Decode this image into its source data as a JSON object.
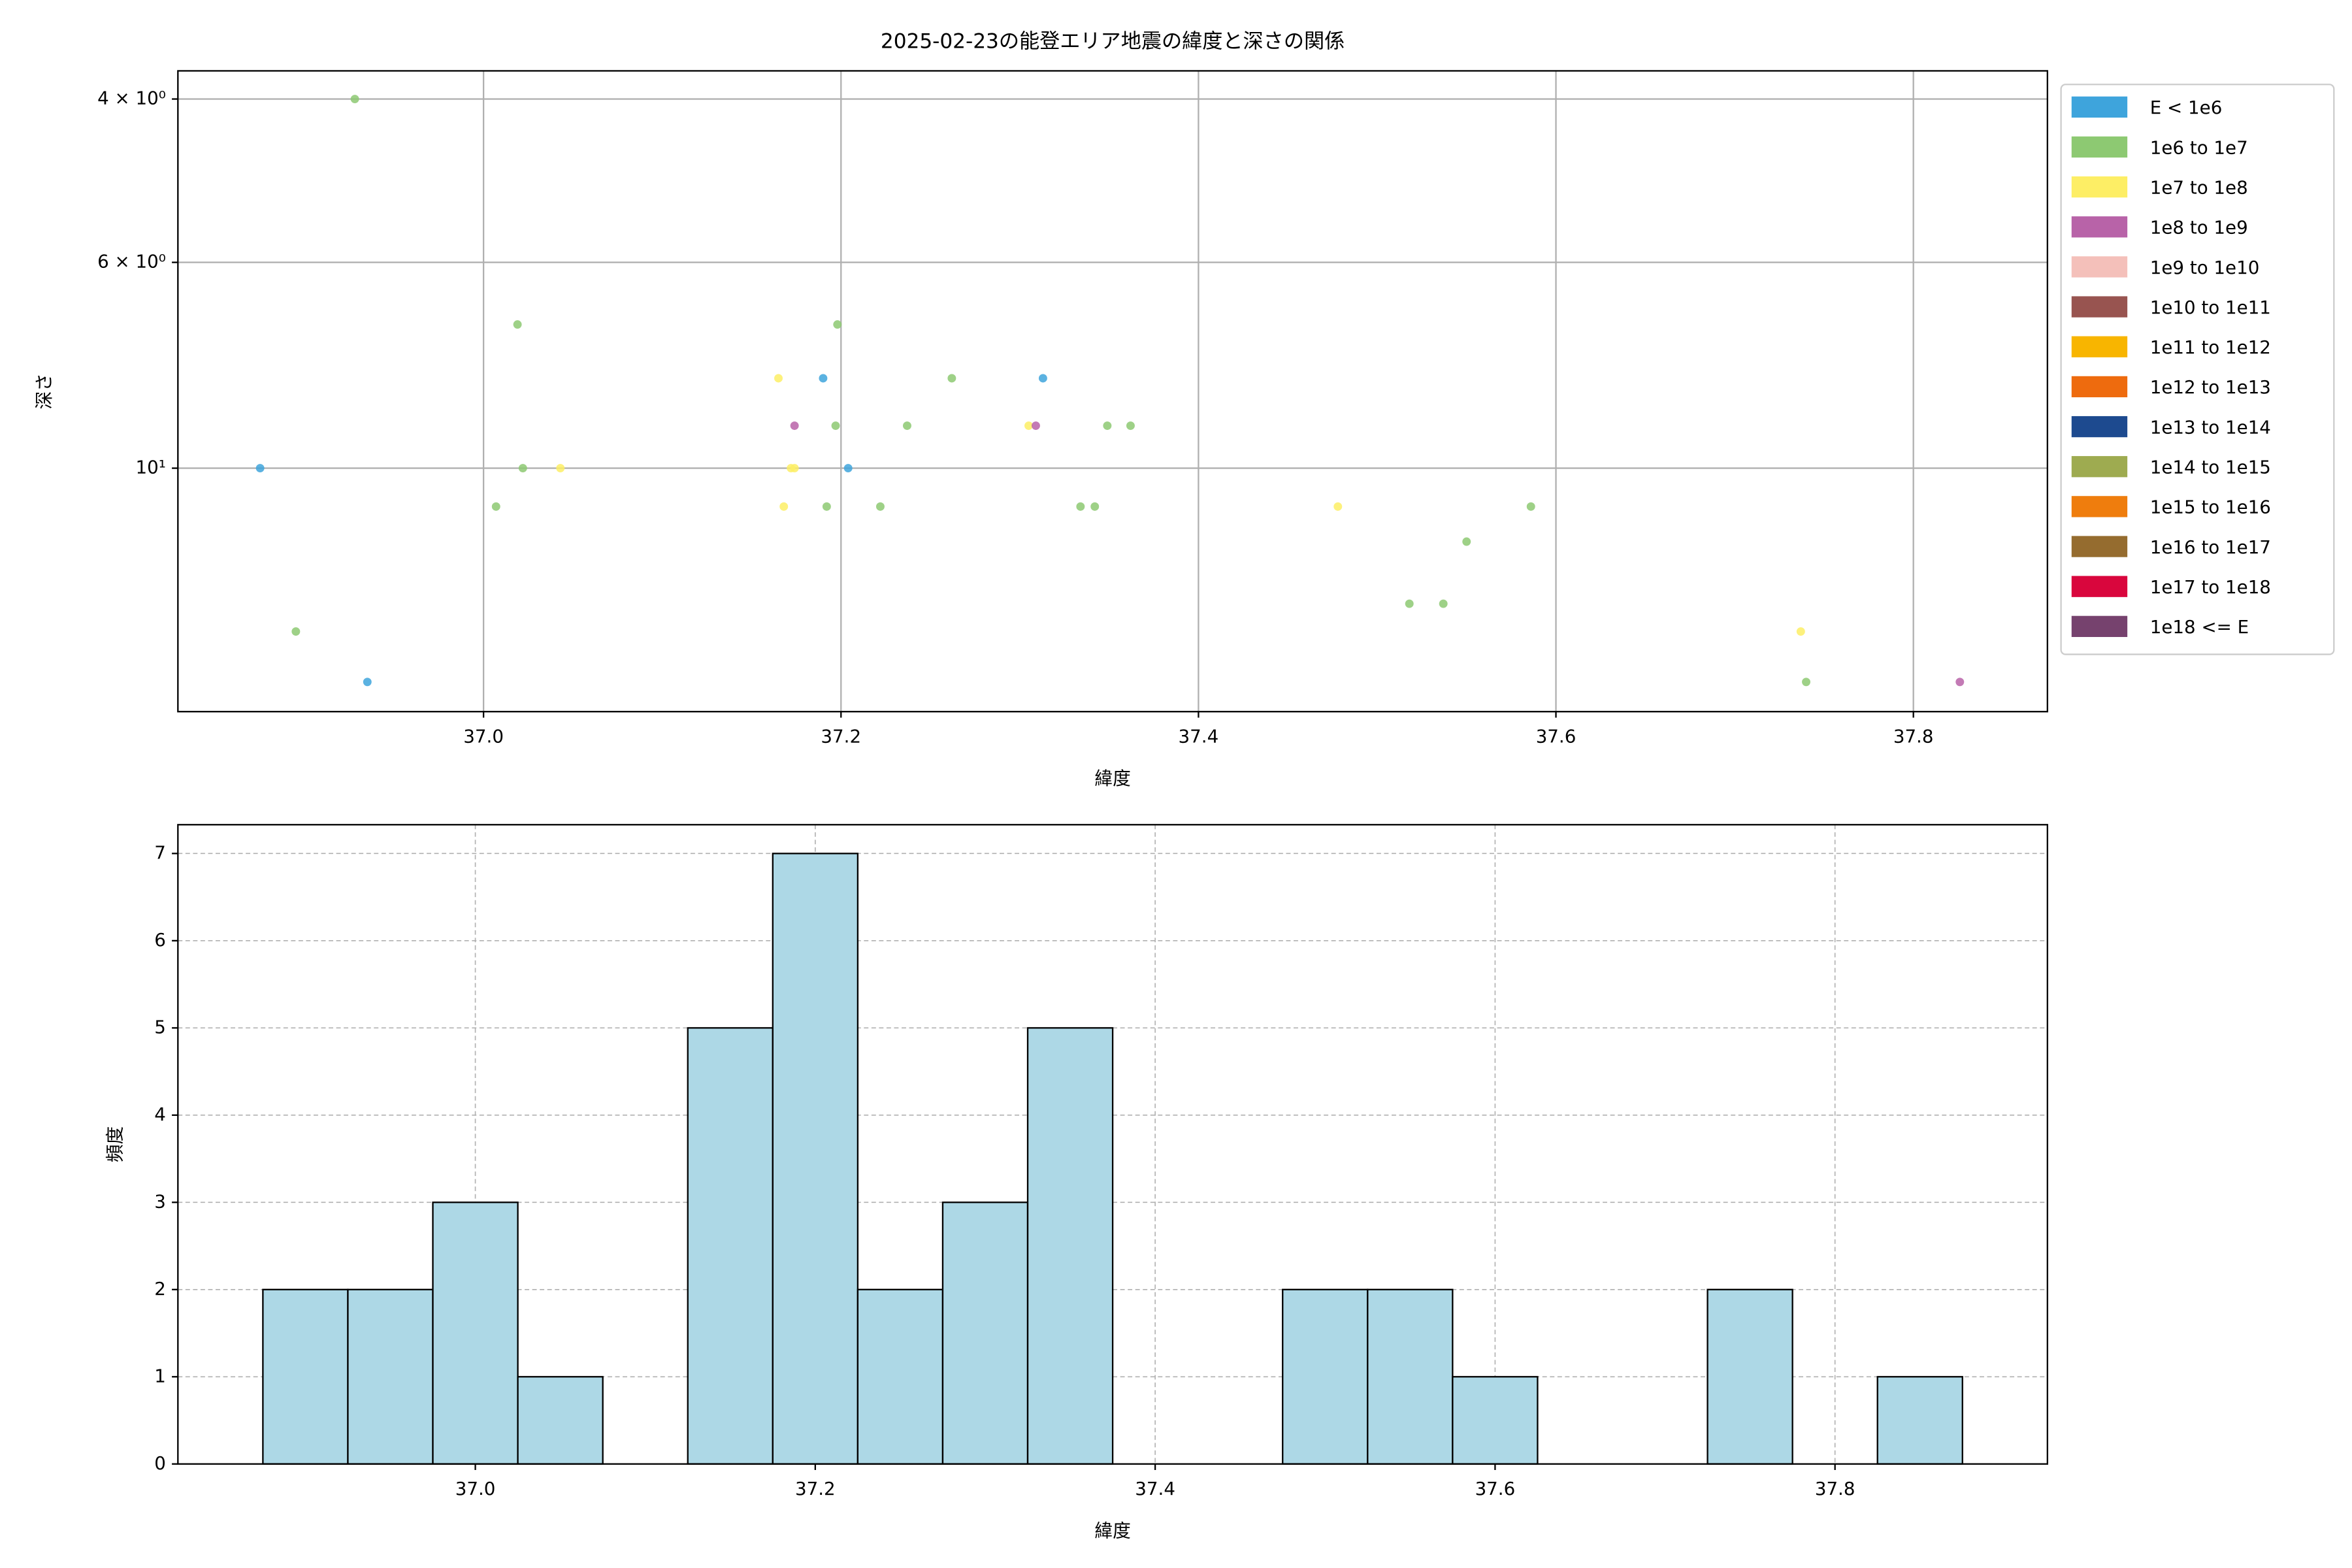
{
  "chart_data": [
    {
      "type": "scatter",
      "title": "2025-02-23の能登エリア地震の緯度と深さの関係",
      "x_label": "緯度",
      "y_label": "深さ",
      "yscale": "log",
      "grid": true,
      "grid_style": "solid",
      "legend": "outside right",
      "xlim": [
        36.829,
        37.875
      ],
      "xticks": [
        {
          "value": 37,
          "label": "37.0"
        },
        37.2,
        37.4,
        37.6,
        37.8
      ],
      "ylim": [
        18.3,
        3.73
      ],
      "yticks": [
        {
          "value": 4,
          "label": "4 × 10⁰"
        },
        {
          "value": 6,
          "label": "6 × 10⁰"
        },
        {
          "value": 10,
          "label": "10¹"
        }
      ],
      "series": [
        {
          "name": "E < 1e6",
          "color": "#3ea4dc",
          "x": [
            36.875,
            36.935,
            37.19,
            37.204,
            37.313
          ],
          "values": [
            10,
            17,
            8,
            10,
            8
          ]
        },
        {
          "name": "1e6 to 1e7",
          "color": "#8dc972",
          "x": [
            36.928,
            36.895,
            37.019,
            37.007,
            37.022,
            37.198,
            37.197,
            37.192,
            37.222,
            37.237,
            37.262,
            37.349,
            37.362,
            37.334,
            37.342,
            37.586,
            37.55,
            37.518,
            37.537,
            37.74
          ],
          "values": [
            4,
            15,
            7,
            11,
            10,
            7,
            9,
            11,
            11,
            9,
            8,
            9,
            9,
            11,
            11,
            11,
            12,
            14,
            14,
            17
          ]
        },
        {
          "name": "1e7 to 1e8",
          "color": "#fdee65",
          "x": [
            37.043,
            37.165,
            37.172,
            37.174,
            37.168,
            37.305,
            37.478,
            37.737
          ],
          "values": [
            10,
            8,
            10,
            10,
            11,
            9,
            11,
            15
          ]
        },
        {
          "name": "1e8 to 1e9",
          "color": "#b863a8",
          "x": [
            37.174,
            37.309,
            37.826
          ],
          "values": [
            9,
            9,
            17
          ]
        },
        {
          "name": "1e9 to 1e10",
          "color": "#f4c0ba",
          "x": [],
          "values": []
        },
        {
          "name": "1e10 to 1e11",
          "color": "#985450",
          "x": [],
          "values": []
        },
        {
          "name": "1e11 to 1e12",
          "color": "#f8b500",
          "x": [],
          "values": []
        },
        {
          "name": "1e12 to 1e13",
          "color": "#ee6b0e",
          "x": [],
          "values": []
        },
        {
          "name": "1e13 to 1e14",
          "color": "#1d4a8f",
          "x": [],
          "values": []
        },
        {
          "name": "1e14 to 1e15",
          "color": "#9eab50",
          "x": [],
          "values": []
        },
        {
          "name": "1e15 to 1e16",
          "color": "#ef7d0d",
          "x": [],
          "values": []
        },
        {
          "name": "1e16 to 1e17",
          "color": "#956c2f",
          "x": [],
          "values": []
        },
        {
          "name": "1e17 to 1e18",
          "color": "#d9063d",
          "x": [],
          "values": []
        },
        {
          "name": "1e18 <= E",
          "color": "#76426e",
          "x": [],
          "values": []
        }
      ]
    },
    {
      "type": "histogram",
      "x_label": "緯度",
      "y_label": "頻度",
      "grid": true,
      "grid_style": "dashed",
      "color": "#add8e6",
      "xlim": [
        36.825,
        37.925
      ],
      "xticks": [
        {
          "value": 37,
          "label": "37.0"
        },
        37.2,
        37.4,
        37.6,
        37.8
      ],
      "ylim": [
        0,
        7.33
      ],
      "yticks": [
        0,
        1,
        2,
        3,
        4,
        5,
        6,
        7
      ],
      "bins": [
        36.875,
        36.925,
        36.975,
        37.025,
        37.075,
        37.125,
        37.175,
        37.225,
        37.275,
        37.325,
        37.375,
        37.425,
        37.475,
        37.525,
        37.575,
        37.625,
        37.675,
        37.725,
        37.775,
        37.825,
        37.875
      ],
      "values": [
        2,
        2,
        3,
        1,
        0,
        5,
        7,
        2,
        3,
        5,
        0,
        0,
        2,
        2,
        1,
        0,
        0,
        2,
        0,
        1
      ]
    }
  ]
}
